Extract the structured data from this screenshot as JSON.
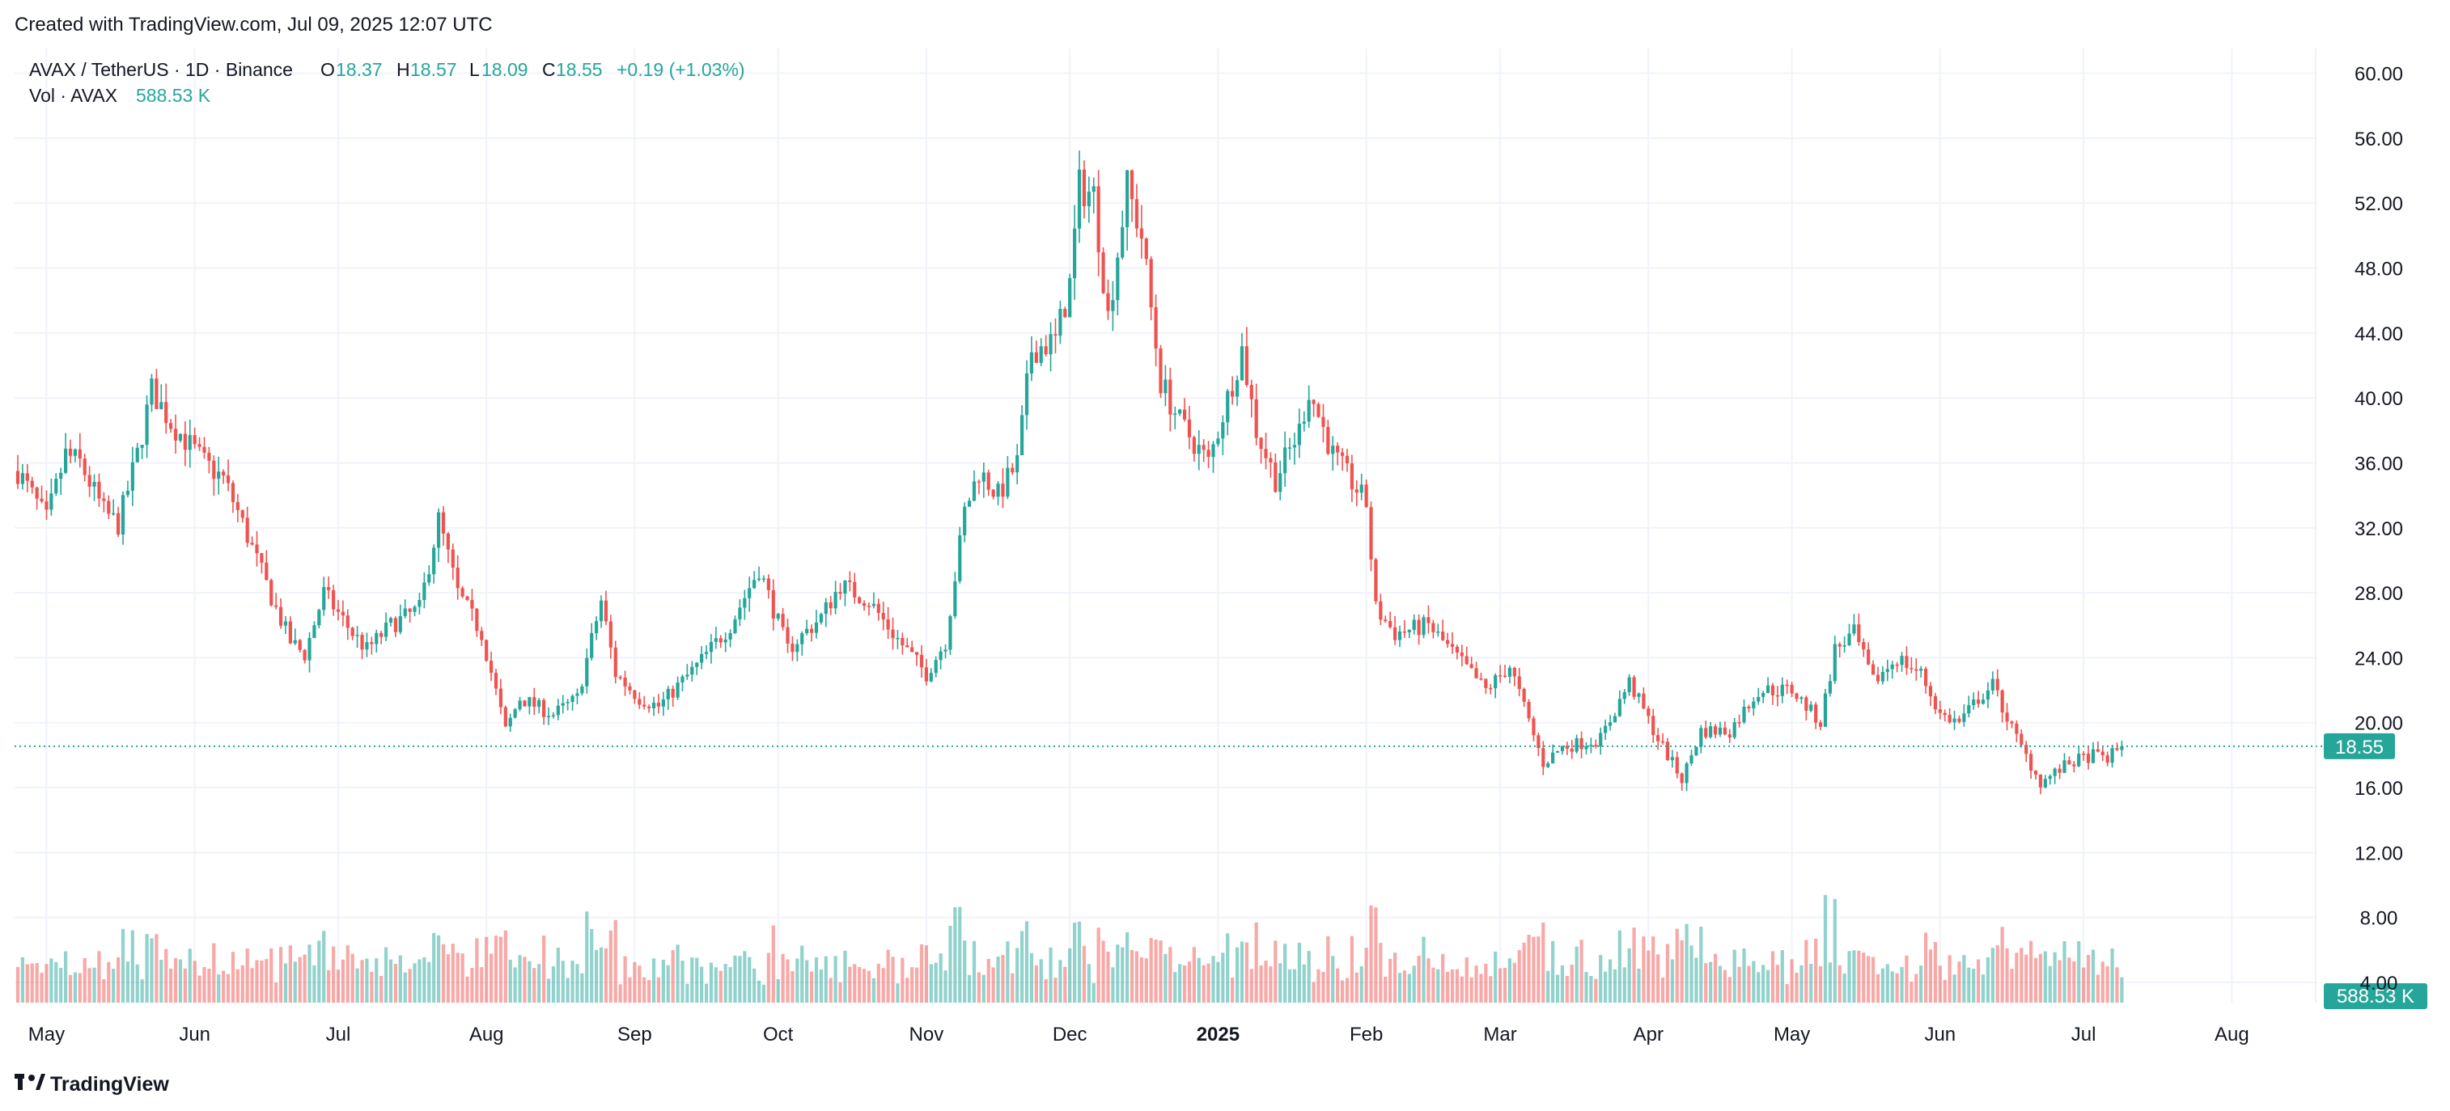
{
  "header": {
    "created_text": "Created with TradingView.com, Jul 09, 2025 12:07 UTC"
  },
  "legend": {
    "symbol": "AVAX / TetherUS · 1D · Binance",
    "o_label": "O",
    "o_value": "18.37",
    "h_label": "H",
    "h_value": "18.57",
    "l_label": "L",
    "l_value": "18.09",
    "c_label": "C",
    "c_value": "18.55",
    "change": "+0.19 (+1.03%)",
    "vol_label": "Vol · AVAX",
    "vol_value": "588.53 K"
  },
  "footer": {
    "brand": "TradingView",
    "logo_icon": "tradingview-logo-icon"
  },
  "colors": {
    "up": "#26a69a",
    "down": "#ef5350",
    "up_volume": "#26a69a80",
    "down_volume": "#ef535080",
    "grid": "#f0f3fa",
    "axis_text": "#131722",
    "price_line": "#26a69a"
  },
  "chart_data": {
    "type": "candlestick",
    "interval": "1D",
    "y_axis_side": "right",
    "ylim": [
      4,
      62
    ],
    "y_ticks": [
      "60.00",
      "56.00",
      "52.00",
      "48.00",
      "44.00",
      "40.00",
      "36.00",
      "32.00",
      "28.00",
      "24.00",
      "20.00",
      "16.00",
      "12.00",
      "8.00",
      "4.00"
    ],
    "x_ticks": [
      "May",
      "Jun",
      "Jul",
      "Aug",
      "Sep",
      "Oct",
      "Nov",
      "Dec",
      "2025",
      "Feb",
      "Mar",
      "Apr",
      "May",
      "Jun",
      "Jul",
      "Aug"
    ],
    "x_range": [
      "2024-04-25",
      "2025-08-10"
    ],
    "grid": true,
    "last_price": 18.55,
    "last_price_label": "18.55",
    "last_volume_label": "588.53 K",
    "price_path": [
      [
        "2024-04-25",
        35.5
      ],
      [
        "2024-05-01",
        32.5
      ],
      [
        "2024-05-05",
        36.5
      ],
      [
        "2024-05-08",
        36.0
      ],
      [
        "2024-05-13",
        33.0
      ],
      [
        "2024-05-16",
        32.2
      ],
      [
        "2024-05-20",
        36.5
      ],
      [
        "2024-05-23",
        40.5
      ],
      [
        "2024-05-27",
        38.5
      ],
      [
        "2024-06-03",
        36.0
      ],
      [
        "2024-06-07",
        35.0
      ],
      [
        "2024-06-10",
        33.0
      ],
      [
        "2024-06-14",
        30.0
      ],
      [
        "2024-06-18",
        27.0
      ],
      [
        "2024-06-21",
        25.0
      ],
      [
        "2024-06-24",
        24.2
      ],
      [
        "2024-06-28",
        28.0
      ],
      [
        "2024-07-04",
        25.5
      ],
      [
        "2024-07-07",
        24.5
      ],
      [
        "2024-07-12",
        26.0
      ],
      [
        "2024-07-18",
        27.0
      ],
      [
        "2024-07-22",
        32.5
      ],
      [
        "2024-07-26",
        28.0
      ],
      [
        "2024-07-31",
        25.5
      ],
      [
        "2024-08-05",
        19.5
      ],
      [
        "2024-08-08",
        21.5
      ],
      [
        "2024-08-15",
        20.5
      ],
      [
        "2024-08-20",
        21.5
      ],
      [
        "2024-08-25",
        27.5
      ],
      [
        "2024-08-28",
        23.0
      ],
      [
        "2024-09-02",
        21.5
      ],
      [
        "2024-09-06",
        21.0
      ],
      [
        "2024-09-14",
        23.5
      ],
      [
        "2024-09-21",
        26.0
      ],
      [
        "2024-09-27",
        29.5
      ],
      [
        "2024-10-03",
        24.5
      ],
      [
        "2024-10-10",
        26.5
      ],
      [
        "2024-10-14",
        28.5
      ],
      [
        "2024-10-20",
        27.5
      ],
      [
        "2024-10-25",
        25.5
      ],
      [
        "2024-11-01",
        23.0
      ],
      [
        "2024-11-05",
        25.0
      ],
      [
        "2024-11-09",
        33.0
      ],
      [
        "2024-11-12",
        35.5
      ],
      [
        "2024-11-16",
        34.0
      ],
      [
        "2024-11-20",
        36.0
      ],
      [
        "2024-11-23",
        43.0
      ],
      [
        "2024-11-28",
        43.5
      ],
      [
        "2024-12-01",
        47.0
      ],
      [
        "2024-12-03",
        53.0
      ],
      [
        "2024-12-06",
        52.5
      ],
      [
        "2024-12-09",
        45.0
      ],
      [
        "2024-12-13",
        53.0
      ],
      [
        "2024-12-16",
        50.0
      ],
      [
        "2024-12-20",
        41.0
      ],
      [
        "2024-12-24",
        38.5
      ],
      [
        "2024-12-30",
        36.0
      ],
      [
        "2025-01-06",
        43.0
      ],
      [
        "2025-01-09",
        38.0
      ],
      [
        "2025-01-13",
        35.0
      ],
      [
        "2025-01-18",
        38.0
      ],
      [
        "2025-01-20",
        40.5
      ],
      [
        "2025-01-25",
        36.5
      ],
      [
        "2025-02-01",
        33.5
      ],
      [
        "2025-02-03",
        27.0
      ],
      [
        "2025-02-07",
        25.5
      ],
      [
        "2025-02-14",
        26.0
      ],
      [
        "2025-02-20",
        24.0
      ],
      [
        "2025-02-26",
        22.0
      ],
      [
        "2025-03-03",
        23.5
      ],
      [
        "2025-03-10",
        17.5
      ],
      [
        "2025-03-14",
        18.5
      ],
      [
        "2025-03-22",
        19.0
      ],
      [
        "2025-03-28",
        22.5
      ],
      [
        "2025-04-03",
        19.0
      ],
      [
        "2025-04-08",
        16.5
      ],
      [
        "2025-04-12",
        19.5
      ],
      [
        "2025-04-18",
        19.5
      ],
      [
        "2025-04-24",
        22.0
      ],
      [
        "2025-05-01",
        22.0
      ],
      [
        "2025-05-07",
        20.0
      ],
      [
        "2025-05-10",
        24.5
      ],
      [
        "2025-05-14",
        25.5
      ],
      [
        "2025-05-18",
        22.5
      ],
      [
        "2025-05-23",
        24.0
      ],
      [
        "2025-05-28",
        23.0
      ],
      [
        "2025-06-01",
        20.5
      ],
      [
        "2025-06-05",
        20.0
      ],
      [
        "2025-06-09",
        21.5
      ],
      [
        "2025-06-12",
        22.3
      ],
      [
        "2025-06-17",
        19.0
      ],
      [
        "2025-06-22",
        16.3
      ],
      [
        "2025-06-28",
        17.5
      ],
      [
        "2025-07-03",
        18.0
      ],
      [
        "2025-07-06",
        17.8
      ],
      [
        "2025-07-09",
        18.55
      ]
    ],
    "volume_note": "volume histogram shown below price with up/down coloring"
  }
}
